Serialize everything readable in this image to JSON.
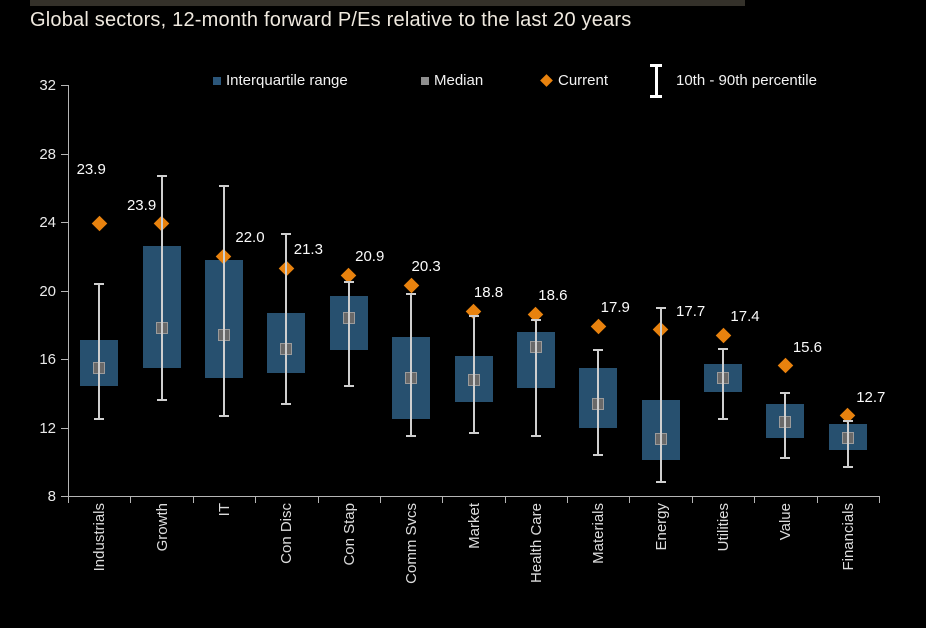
{
  "title": "Global sectors, 12-month forward P/Es relative to the last 20 years",
  "legend": {
    "iqr_label": "Interquartile range",
    "median_label": "Median",
    "current_label": "Current",
    "percentile_label": "10th - 90th percentile"
  },
  "colors": {
    "background": "#000000",
    "box_fill": "#27506f",
    "legend_box_fill": "#2b567a",
    "median_fill": "#696969",
    "median_border": "#9b9b9b",
    "legend_median_fill": "#8f8f8f",
    "current_orange": "#e8820e",
    "whisker": "#cfcfcf",
    "axis": "#b5b5b5",
    "title_text": "#efe9df",
    "label_text": "#fbfbfb",
    "top_bar": "#34312a"
  },
  "chart_data": {
    "type": "box",
    "title": "Global sectors, 12-month forward P/Es relative to the last 20 years",
    "orientation": "vertical",
    "ylim": [
      8,
      32
    ],
    "y_ticks": [
      32,
      28,
      24,
      20,
      16,
      12,
      8
    ],
    "grid": false,
    "legend_position": "top",
    "categories": [
      "Industrials",
      "Growth",
      "IT",
      "Con Disc",
      "Con Stap",
      "Comm Svcs",
      "Market",
      "Health Care",
      "Materials",
      "Energy",
      "Utilities",
      "Value",
      "Financials"
    ],
    "series": [
      {
        "name": "10th percentile",
        "values": [
          12.5,
          13.6,
          12.7,
          13.4,
          14.4,
          11.5,
          11.7,
          11.5,
          10.4,
          8.8,
          12.5,
          10.2,
          9.7
        ]
      },
      {
        "name": "25th percentile",
        "values": [
          14.4,
          15.5,
          14.9,
          15.2,
          16.5,
          12.5,
          13.5,
          14.3,
          12.0,
          10.1,
          14.1,
          11.4,
          10.7
        ]
      },
      {
        "name": "Median",
        "values": [
          15.5,
          17.8,
          17.4,
          16.6,
          18.4,
          14.9,
          14.8,
          16.7,
          13.4,
          11.3,
          14.9,
          12.3,
          11.4
        ]
      },
      {
        "name": "75th percentile",
        "values": [
          17.1,
          22.6,
          21.8,
          18.7,
          19.7,
          17.3,
          16.2,
          17.6,
          15.5,
          13.6,
          15.7,
          13.4,
          12.2
        ]
      },
      {
        "name": "90th percentile",
        "values": [
          20.4,
          26.7,
          26.1,
          23.3,
          20.5,
          19.8,
          18.5,
          18.3,
          16.5,
          19.0,
          16.6,
          14.0,
          12.4
        ]
      },
      {
        "name": "Current",
        "values": [
          23.9,
          23.9,
          22.0,
          21.3,
          20.9,
          20.3,
          18.8,
          18.6,
          17.9,
          17.7,
          17.4,
          15.6,
          12.7
        ]
      }
    ],
    "current_labels": [
      "23.9",
      "23.9",
      "22.0",
      "21.3",
      "20.9",
      "20.3",
      "18.8",
      "18.6",
      "17.9",
      "17.7",
      "17.4",
      "15.6",
      "12.7"
    ]
  }
}
